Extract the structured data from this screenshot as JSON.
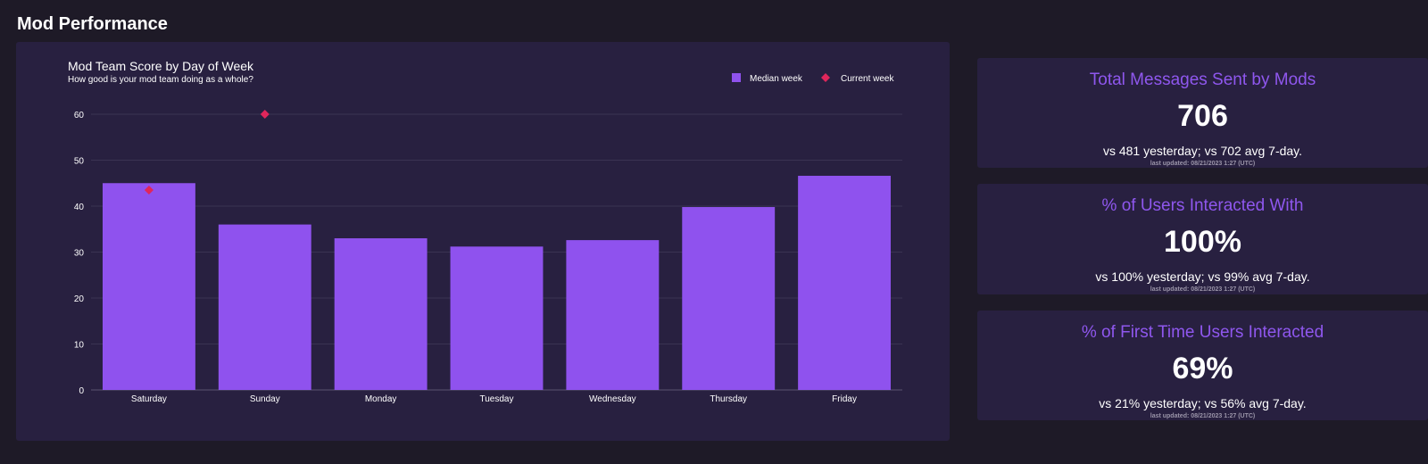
{
  "page": {
    "title": "Mod Performance"
  },
  "colors": {
    "background": "#1e1a27",
    "card": "#282040",
    "bar": "#8f52ee",
    "marker": "#e0265b",
    "stat_title": "#8f57ee"
  },
  "chart_data": {
    "type": "bar",
    "title": "Mod Team Score by Day of Week",
    "subtitle": "How good is your mod team doing as a whole?",
    "categories": [
      "Saturday",
      "Sunday",
      "Monday",
      "Tuesday",
      "Wednesday",
      "Thursday",
      "Friday"
    ],
    "series": [
      {
        "name": "Median week",
        "type": "bar",
        "values": [
          45,
          36,
          33,
          31.2,
          32.6,
          39.8,
          46.6
        ]
      },
      {
        "name": "Current week",
        "type": "scatter",
        "marker": "diamond",
        "values": [
          43.5,
          60,
          null,
          null,
          null,
          null,
          null
        ]
      }
    ],
    "yticks": [
      "0",
      "10",
      "20",
      "30",
      "40",
      "50",
      "60"
    ],
    "ylim": [
      0,
      60
    ],
    "grid": true,
    "legend_position": "top-right"
  },
  "stats": [
    {
      "title": "Total Messages Sent by Mods",
      "value": "706",
      "compare": "vs 481 yesterday; vs 702 avg 7-day.",
      "updated": "last updated: 08/21/2023 1:27 (UTC)"
    },
    {
      "title": "% of Users Interacted With",
      "value": "100%",
      "compare": "vs 100% yesterday; vs 99% avg 7-day.",
      "updated": "last updated: 08/21/2023 1:27 (UTC)"
    },
    {
      "title": "% of First Time Users Interacted",
      "value": "69%",
      "compare": "vs 21% yesterday; vs 56% avg 7-day.",
      "updated": "last updated: 08/21/2023 1:27 (UTC)"
    }
  ]
}
